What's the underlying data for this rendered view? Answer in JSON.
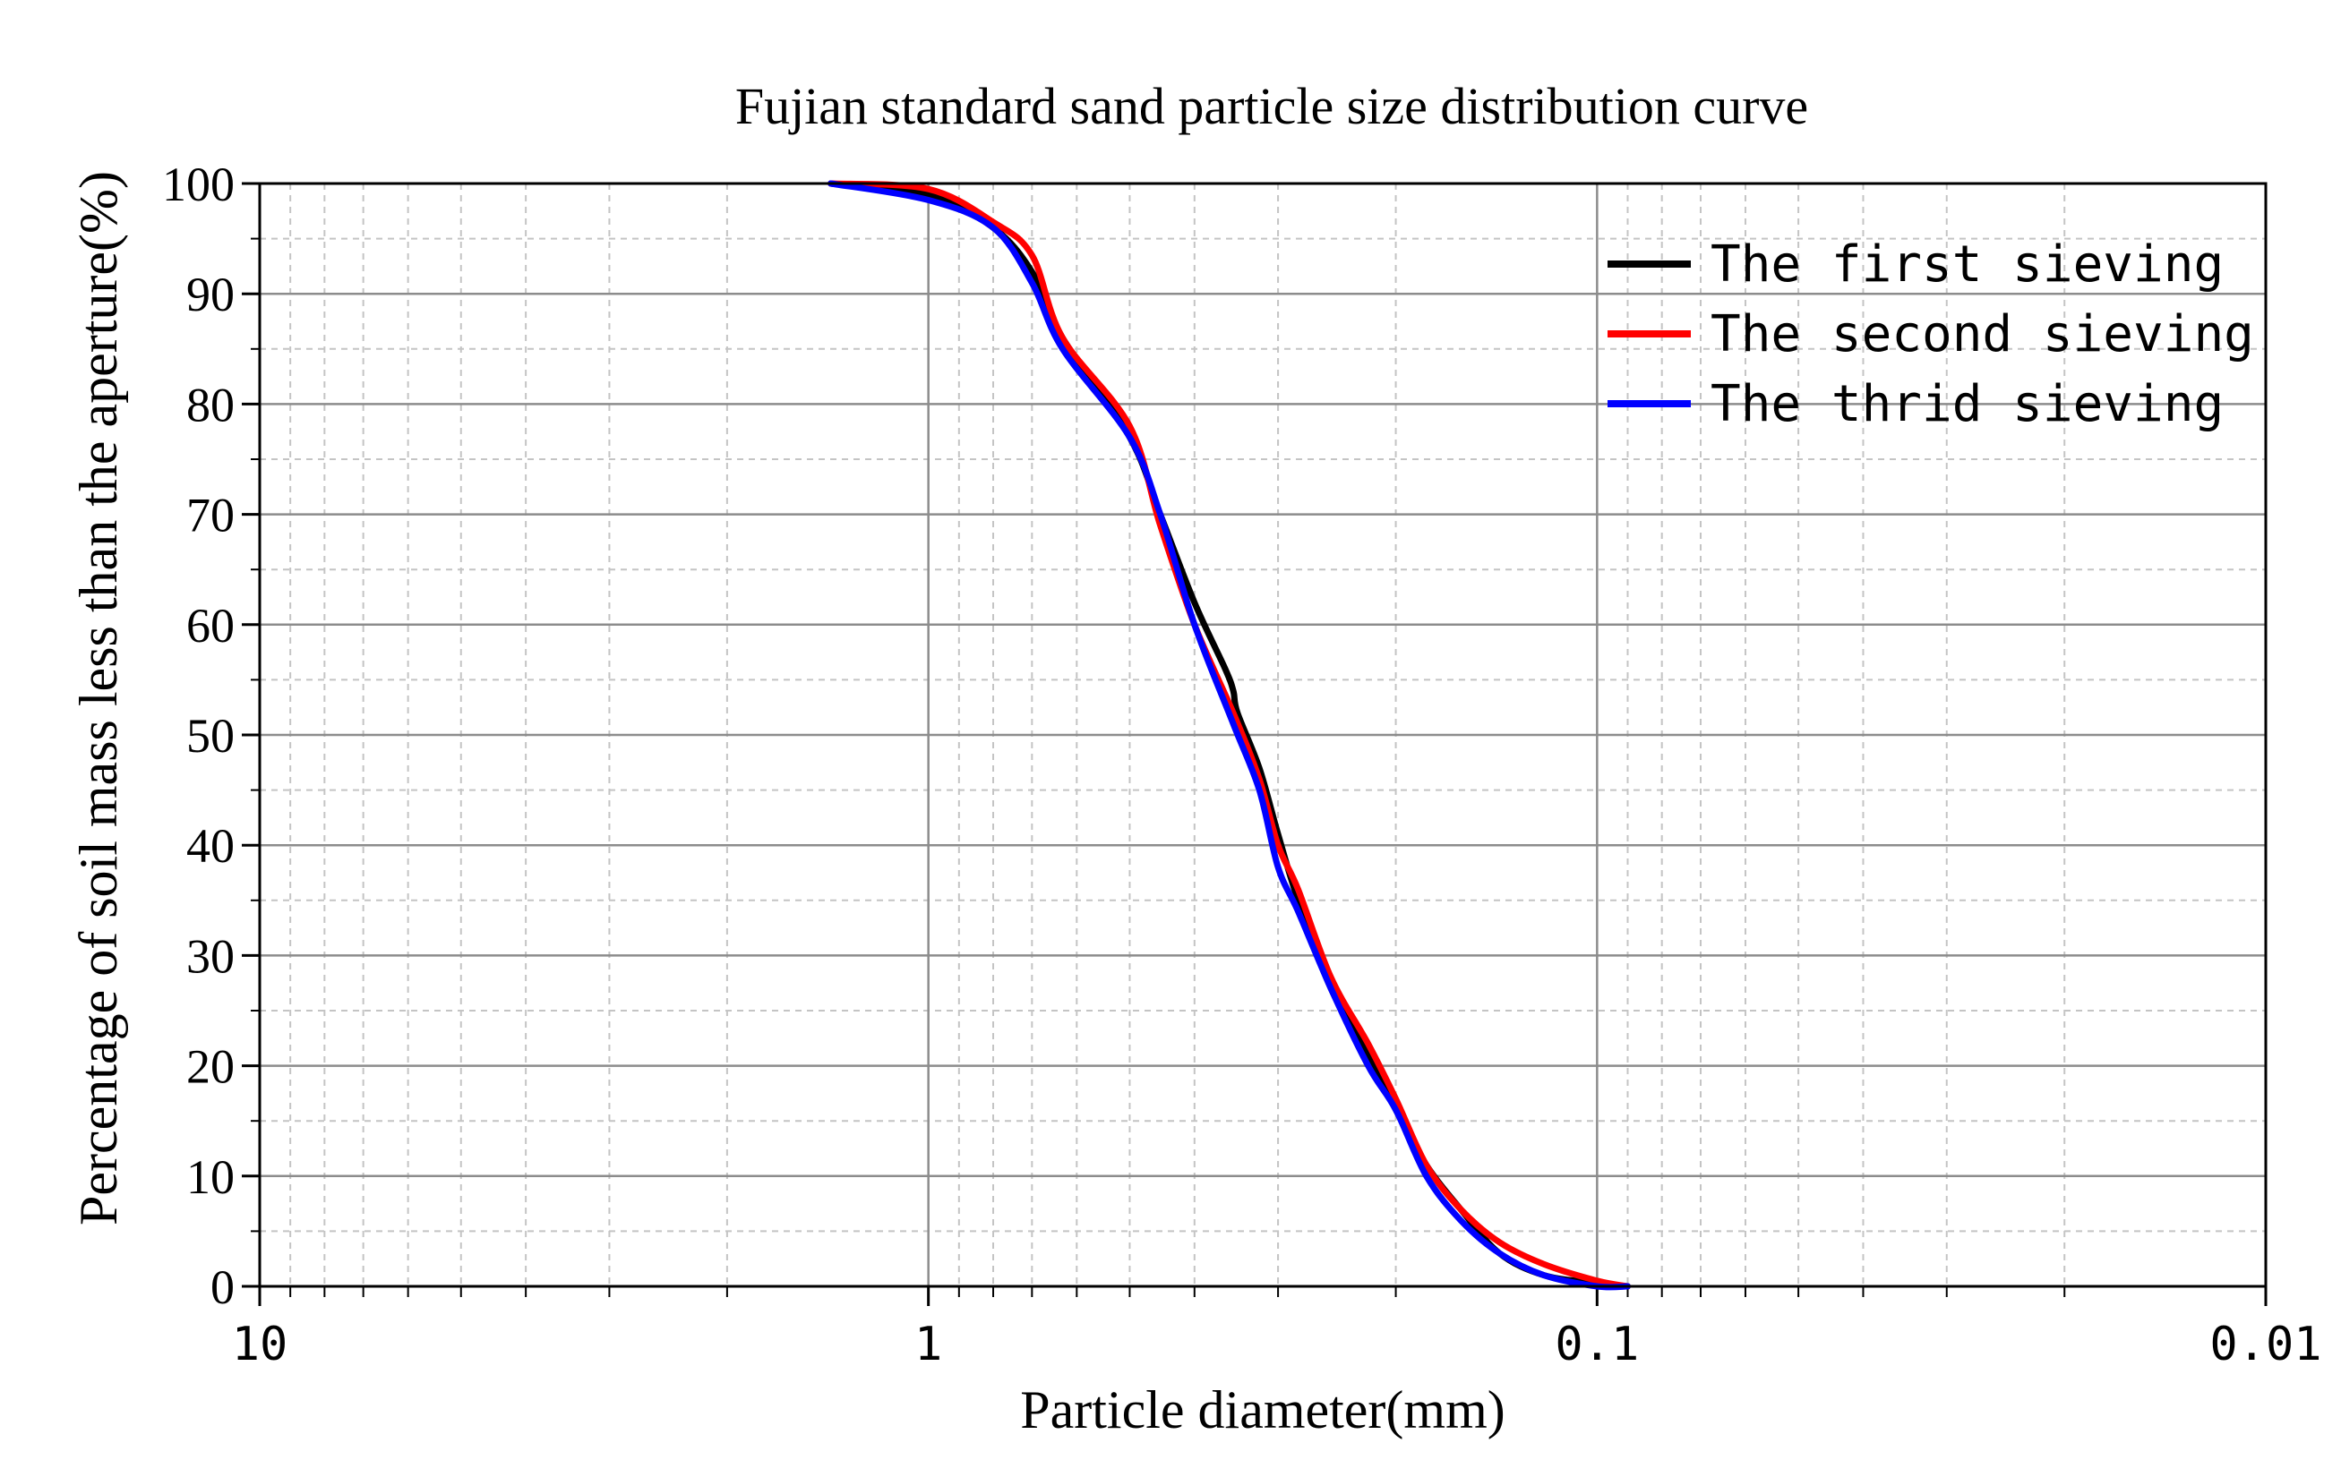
{
  "chart_data": {
    "type": "line",
    "title": "Fujian standard sand particle size distribution curve",
    "xlabel": "Particle diameter(mm)",
    "ylabel": "Percentage of soil mass less than the aperture(%)",
    "x_scale": "log",
    "x_reversed": true,
    "xlim": [
      10,
      0.01
    ],
    "ylim": [
      0,
      100
    ],
    "x_ticks": [
      10,
      1,
      0.1,
      0.01
    ],
    "x_tick_labels": [
      "10",
      "1",
      "0.1",
      "0.01"
    ],
    "y_ticks": [
      0,
      10,
      20,
      30,
      40,
      50,
      60,
      70,
      80,
      90,
      100
    ],
    "y_tick_labels": [
      "0",
      "10",
      "20",
      "30",
      "40",
      "50",
      "60",
      "70",
      "80",
      "90",
      "100"
    ],
    "grid": true,
    "legend_position": "top-right",
    "series": [
      {
        "name": "The first sieving",
        "color": "#000000",
        "x": [
          1.4,
          1.0,
          0.8,
          0.7,
          0.63,
          0.5,
          0.45,
          0.4,
          0.36,
          0.35,
          0.345,
          0.32,
          0.3,
          0.28,
          0.25,
          0.22,
          0.2,
          0.18,
          0.16,
          0.14,
          0.12,
          0.1,
          0.09
        ],
        "y": [
          100,
          99,
          96,
          92,
          86,
          77,
          70,
          62,
          56,
          54,
          52,
          47,
          41,
          35,
          27,
          21,
          16,
          11,
          7,
          3,
          1,
          0.3,
          0
        ]
      },
      {
        "name": "The second sieving",
        "color": "#ff0000",
        "x": [
          1.4,
          1.0,
          0.8,
          0.7,
          0.63,
          0.5,
          0.45,
          0.4,
          0.35,
          0.32,
          0.3,
          0.28,
          0.25,
          0.22,
          0.2,
          0.18,
          0.16,
          0.14,
          0.12,
          0.1,
          0.09
        ],
        "y": [
          100,
          99.5,
          96.5,
          93.5,
          86,
          78,
          69,
          60,
          52,
          46,
          40,
          36,
          28,
          22,
          17,
          11,
          7,
          4,
          2,
          0.5,
          0
        ]
      },
      {
        "name": "The thrid sieving",
        "color": "#0000ff",
        "x": [
          1.4,
          1.0,
          0.8,
          0.7,
          0.63,
          0.5,
          0.45,
          0.4,
          0.35,
          0.32,
          0.3,
          0.28,
          0.25,
          0.22,
          0.2,
          0.18,
          0.16,
          0.14,
          0.12,
          0.1,
          0.09
        ],
        "y": [
          100,
          98.5,
          96,
          91,
          85,
          77,
          70,
          60,
          51,
          45,
          38,
          34,
          27,
          20,
          16,
          10,
          6,
          3,
          1,
          0,
          0
        ]
      }
    ]
  }
}
